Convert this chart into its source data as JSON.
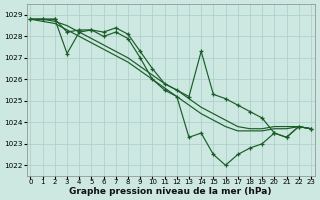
{
  "xlabel": "Graphe pression niveau de la mer (hPa)",
  "xlim": [
    -0.3,
    23.3
  ],
  "ylim": [
    1021.5,
    1029.5
  ],
  "yticks": [
    1022,
    1023,
    1024,
    1025,
    1026,
    1027,
    1028,
    1029
  ],
  "xtick_vals": [
    0,
    1,
    2,
    3,
    4,
    5,
    6,
    7,
    8,
    9,
    10,
    11,
    12,
    13,
    14,
    15,
    16,
    17,
    18,
    19,
    20,
    21,
    22,
    23
  ],
  "xtick_labels": [
    "0",
    "1",
    "2",
    "3",
    "4",
    "5",
    "6",
    "7",
    "8",
    "9",
    "10",
    "11",
    "12",
    "13",
    "14",
    "15",
    "16",
    "17",
    "18",
    "19",
    "20",
    "21",
    "22",
    "23"
  ],
  "bg_color": "#cce8e0",
  "grid_color": "#aacccc",
  "line_color": "#1a5c28",
  "lines": [
    {
      "x": [
        0,
        1,
        2,
        3,
        4,
        5,
        6,
        7,
        8,
        9,
        10,
        11,
        12,
        13,
        14,
        15,
        16,
        17,
        18,
        19,
        20,
        21,
        22,
        23
      ],
      "y": [
        1028.8,
        1028.8,
        1028.7,
        1028.5,
        1028.2,
        1027.9,
        1027.6,
        1027.3,
        1027.0,
        1026.6,
        1026.2,
        1025.8,
        1025.5,
        1025.1,
        1024.7,
        1024.4,
        1024.1,
        1023.8,
        1023.7,
        1023.7,
        1023.8,
        1023.8,
        1023.8,
        1023.7
      ],
      "marker": false
    },
    {
      "x": [
        0,
        1,
        2,
        3,
        4,
        5,
        6,
        7,
        8,
        9,
        10,
        11,
        12,
        13,
        14,
        15,
        16,
        17,
        18,
        19,
        20,
        21,
        22,
        23
      ],
      "y": [
        1028.8,
        1028.8,
        1028.8,
        1027.2,
        1028.2,
        1028.3,
        1028.2,
        1028.4,
        1028.1,
        1027.3,
        1026.5,
        1025.8,
        1025.5,
        1025.2,
        1027.3,
        1025.3,
        1025.1,
        1024.8,
        1024.5,
        1024.2,
        1023.5,
        1023.3,
        1023.8,
        1023.7
      ],
      "marker": true
    },
    {
      "x": [
        0,
        1,
        2,
        3,
        4,
        5,
        6,
        7,
        8,
        9,
        10,
        11,
        12,
        13,
        14,
        15,
        16,
        17,
        18,
        19,
        20,
        21,
        22,
        23
      ],
      "y": [
        1028.8,
        1028.8,
        1028.8,
        1028.2,
        1028.3,
        1028.3,
        1028.0,
        1028.2,
        1027.9,
        1027.0,
        1026.0,
        1025.5,
        1025.2,
        1023.3,
        1023.5,
        1022.5,
        1022.0,
        1022.5,
        1022.8,
        1023.0,
        1023.5,
        1023.3,
        1023.8,
        1023.7
      ],
      "marker": true
    },
    {
      "x": [
        0,
        1,
        2,
        3,
        4,
        5,
        6,
        7,
        8,
        9,
        10,
        11,
        12,
        13,
        14,
        15,
        16,
        17,
        18,
        19,
        20,
        21,
        22,
        23
      ],
      "y": [
        1028.8,
        1028.7,
        1028.6,
        1028.3,
        1028.0,
        1027.7,
        1027.4,
        1027.1,
        1026.8,
        1026.4,
        1026.0,
        1025.6,
        1025.2,
        1024.8,
        1024.4,
        1024.1,
        1023.8,
        1023.6,
        1023.6,
        1023.6,
        1023.7,
        1023.7,
        1023.8,
        1023.7
      ],
      "marker": false
    }
  ]
}
